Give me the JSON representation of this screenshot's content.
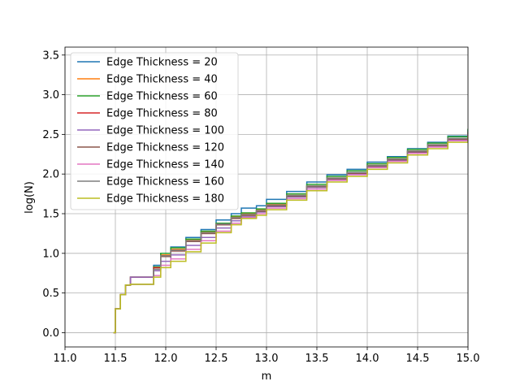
{
  "chart_data": {
    "type": "line",
    "xlabel": "m",
    "ylabel": "log(N)",
    "xlim": [
      11.0,
      15.0
    ],
    "ylim": [
      -0.18,
      3.6
    ],
    "xticks": [
      "11.0",
      "11.5",
      "12.0",
      "12.5",
      "13.0",
      "13.5",
      "14.0",
      "14.5",
      "15.0"
    ],
    "yticks": [
      "0.0",
      "0.5",
      "1.0",
      "1.5",
      "2.0",
      "2.5",
      "3.0",
      "3.5"
    ],
    "grid": true,
    "legend_position": "top-left",
    "series": [
      {
        "name": "Edge Thickness = 20",
        "color": "#1f77b4",
        "points": [
          [
            11.48,
            0.0
          ],
          [
            11.5,
            0.3
          ],
          [
            11.55,
            0.48
          ],
          [
            11.6,
            0.6
          ],
          [
            11.65,
            0.7
          ],
          [
            11.88,
            0.85
          ],
          [
            11.95,
            1.0
          ],
          [
            12.05,
            1.08
          ],
          [
            12.2,
            1.2
          ],
          [
            12.35,
            1.3
          ],
          [
            12.5,
            1.42
          ],
          [
            12.65,
            1.5
          ],
          [
            12.75,
            1.57
          ],
          [
            12.9,
            1.6
          ],
          [
            13.0,
            1.68
          ],
          [
            13.2,
            1.78
          ],
          [
            13.4,
            1.9
          ],
          [
            13.6,
            1.99
          ],
          [
            13.8,
            2.06
          ],
          [
            14.0,
            2.15
          ],
          [
            14.2,
            2.22
          ],
          [
            14.4,
            2.32
          ],
          [
            14.6,
            2.4
          ],
          [
            14.8,
            2.48
          ],
          [
            15.0,
            2.56
          ]
        ]
      },
      {
        "name": "Edge Thickness = 40",
        "color": "#ff7f0e",
        "points": [
          [
            11.48,
            0.0
          ],
          [
            11.5,
            0.3
          ],
          [
            11.55,
            0.48
          ],
          [
            11.6,
            0.6
          ],
          [
            11.65,
            0.7
          ],
          [
            11.88,
            0.82
          ],
          [
            11.95,
            0.98
          ],
          [
            12.05,
            1.05
          ],
          [
            12.2,
            1.17
          ],
          [
            12.35,
            1.27
          ],
          [
            12.5,
            1.38
          ],
          [
            12.65,
            1.46
          ],
          [
            12.75,
            1.5
          ],
          [
            12.9,
            1.55
          ],
          [
            13.0,
            1.62
          ],
          [
            13.2,
            1.73
          ],
          [
            13.4,
            1.85
          ],
          [
            13.6,
            1.95
          ],
          [
            13.8,
            2.02
          ],
          [
            14.0,
            2.11
          ],
          [
            14.2,
            2.19
          ],
          [
            14.4,
            2.29
          ],
          [
            14.6,
            2.37
          ],
          [
            14.8,
            2.45
          ],
          [
            15.0,
            2.53
          ]
        ]
      },
      {
        "name": "Edge Thickness = 60",
        "color": "#2ca02c",
        "points": [
          [
            11.48,
            0.0
          ],
          [
            11.5,
            0.3
          ],
          [
            11.55,
            0.48
          ],
          [
            11.6,
            0.6
          ],
          [
            11.65,
            0.7
          ],
          [
            11.88,
            0.83
          ],
          [
            11.95,
            1.0
          ],
          [
            12.05,
            1.07
          ],
          [
            12.2,
            1.18
          ],
          [
            12.35,
            1.28
          ],
          [
            12.5,
            1.38
          ],
          [
            12.65,
            1.47
          ],
          [
            12.75,
            1.51
          ],
          [
            12.9,
            1.56
          ],
          [
            13.0,
            1.63
          ],
          [
            13.2,
            1.75
          ],
          [
            13.4,
            1.87
          ],
          [
            13.6,
            1.97
          ],
          [
            13.8,
            2.04
          ],
          [
            14.0,
            2.13
          ],
          [
            14.2,
            2.21
          ],
          [
            14.4,
            2.31
          ],
          [
            14.6,
            2.39
          ],
          [
            14.8,
            2.47
          ],
          [
            15.0,
            2.57
          ]
        ]
      },
      {
        "name": "Edge Thickness = 80",
        "color": "#d62728",
        "points": [
          [
            11.48,
            0.0
          ],
          [
            11.5,
            0.3
          ],
          [
            11.55,
            0.48
          ],
          [
            11.6,
            0.6
          ],
          [
            11.65,
            0.7
          ],
          [
            11.88,
            0.82
          ],
          [
            11.95,
            0.97
          ],
          [
            12.05,
            1.03
          ],
          [
            12.2,
            1.15
          ],
          [
            12.35,
            1.25
          ],
          [
            12.5,
            1.36
          ],
          [
            12.65,
            1.44
          ],
          [
            12.75,
            1.48
          ],
          [
            12.9,
            1.53
          ],
          [
            13.0,
            1.6
          ],
          [
            13.2,
            1.72
          ],
          [
            13.4,
            1.84
          ],
          [
            13.6,
            1.94
          ],
          [
            13.8,
            2.01
          ],
          [
            14.0,
            2.1
          ],
          [
            14.2,
            2.18
          ],
          [
            14.4,
            2.28
          ],
          [
            14.6,
            2.36
          ],
          [
            14.8,
            2.44
          ],
          [
            15.0,
            2.52
          ]
        ]
      },
      {
        "name": "Edge Thickness = 100",
        "color": "#9467bd",
        "points": [
          [
            11.48,
            0.0
          ],
          [
            11.5,
            0.3
          ],
          [
            11.55,
            0.48
          ],
          [
            11.6,
            0.6
          ],
          [
            11.65,
            0.7
          ],
          [
            11.88,
            0.78
          ],
          [
            11.95,
            0.9
          ],
          [
            12.05,
            0.98
          ],
          [
            12.2,
            1.1
          ],
          [
            12.35,
            1.2
          ],
          [
            12.5,
            1.32
          ],
          [
            12.65,
            1.41
          ],
          [
            12.75,
            1.46
          ],
          [
            12.9,
            1.52
          ],
          [
            13.0,
            1.59
          ],
          [
            13.2,
            1.71
          ],
          [
            13.4,
            1.83
          ],
          [
            13.6,
            1.93
          ],
          [
            13.8,
            2.0
          ],
          [
            14.0,
            2.09
          ],
          [
            14.2,
            2.17
          ],
          [
            14.4,
            2.27
          ],
          [
            14.6,
            2.35
          ],
          [
            14.8,
            2.43
          ],
          [
            15.0,
            2.51
          ]
        ]
      },
      {
        "name": "Edge Thickness = 120",
        "color": "#8c564b",
        "points": [
          [
            11.48,
            0.0
          ],
          [
            11.5,
            0.3
          ],
          [
            11.55,
            0.48
          ],
          [
            11.6,
            0.6
          ],
          [
            11.65,
            0.61
          ],
          [
            11.88,
            0.8
          ],
          [
            11.95,
            0.96
          ],
          [
            12.05,
            1.03
          ],
          [
            12.2,
            1.15
          ],
          [
            12.35,
            1.25
          ],
          [
            12.5,
            1.36
          ],
          [
            12.65,
            1.44
          ],
          [
            12.75,
            1.48
          ],
          [
            12.9,
            1.53
          ],
          [
            13.0,
            1.6
          ],
          [
            13.2,
            1.72
          ],
          [
            13.4,
            1.84
          ],
          [
            13.6,
            1.94
          ],
          [
            13.8,
            2.01
          ],
          [
            14.0,
            2.1
          ],
          [
            14.2,
            2.18
          ],
          [
            14.4,
            2.28
          ],
          [
            14.6,
            2.36
          ],
          [
            14.8,
            2.44
          ],
          [
            15.0,
            2.53
          ]
        ]
      },
      {
        "name": "Edge Thickness = 140",
        "color": "#e377c2",
        "points": [
          [
            11.48,
            0.0
          ],
          [
            11.5,
            0.3
          ],
          [
            11.55,
            0.48
          ],
          [
            11.6,
            0.6
          ],
          [
            11.65,
            0.61
          ],
          [
            11.88,
            0.72
          ],
          [
            11.95,
            0.85
          ],
          [
            12.05,
            0.93
          ],
          [
            12.2,
            1.05
          ],
          [
            12.35,
            1.16
          ],
          [
            12.5,
            1.28
          ],
          [
            12.65,
            1.38
          ],
          [
            12.75,
            1.45
          ],
          [
            12.9,
            1.5
          ],
          [
            13.0,
            1.57
          ],
          [
            13.2,
            1.69
          ],
          [
            13.4,
            1.81
          ],
          [
            13.6,
            1.92
          ],
          [
            13.8,
            1.99
          ],
          [
            14.0,
            2.08
          ],
          [
            14.2,
            2.16
          ],
          [
            14.4,
            2.26
          ],
          [
            14.6,
            2.34
          ],
          [
            14.8,
            2.42
          ],
          [
            15.0,
            2.5
          ]
        ]
      },
      {
        "name": "Edge Thickness = 160",
        "color": "#7f7f7f",
        "points": [
          [
            11.48,
            0.0
          ],
          [
            11.5,
            0.3
          ],
          [
            11.55,
            0.48
          ],
          [
            11.6,
            0.6
          ],
          [
            11.65,
            0.61
          ],
          [
            11.88,
            0.8
          ],
          [
            11.95,
            0.97
          ],
          [
            12.05,
            1.04
          ],
          [
            12.2,
            1.16
          ],
          [
            12.35,
            1.26
          ],
          [
            12.5,
            1.37
          ],
          [
            12.65,
            1.45
          ],
          [
            12.75,
            1.49
          ],
          [
            12.9,
            1.54
          ],
          [
            13.0,
            1.61
          ],
          [
            13.2,
            1.73
          ],
          [
            13.4,
            1.85
          ],
          [
            13.6,
            1.95
          ],
          [
            13.8,
            2.02
          ],
          [
            14.0,
            2.11
          ],
          [
            14.2,
            2.19
          ],
          [
            14.4,
            2.29
          ],
          [
            14.6,
            2.37
          ],
          [
            14.8,
            2.45
          ],
          [
            15.0,
            2.54
          ]
        ]
      },
      {
        "name": "Edge Thickness = 180",
        "color": "#bcbd22",
        "points": [
          [
            11.48,
            0.0
          ],
          [
            11.5,
            0.3
          ],
          [
            11.55,
            0.48
          ],
          [
            11.6,
            0.6
          ],
          [
            11.65,
            0.61
          ],
          [
            11.88,
            0.7
          ],
          [
            11.95,
            0.82
          ],
          [
            12.05,
            0.9
          ],
          [
            12.2,
            1.02
          ],
          [
            12.35,
            1.13
          ],
          [
            12.5,
            1.26
          ],
          [
            12.65,
            1.36
          ],
          [
            12.75,
            1.44
          ],
          [
            12.9,
            1.48
          ],
          [
            13.0,
            1.55
          ],
          [
            13.2,
            1.67
          ],
          [
            13.4,
            1.79
          ],
          [
            13.6,
            1.9
          ],
          [
            13.8,
            1.97
          ],
          [
            14.0,
            2.06
          ],
          [
            14.2,
            2.14
          ],
          [
            14.4,
            2.24
          ],
          [
            14.6,
            2.32
          ],
          [
            14.8,
            2.4
          ],
          [
            15.0,
            2.48
          ]
        ]
      }
    ]
  }
}
